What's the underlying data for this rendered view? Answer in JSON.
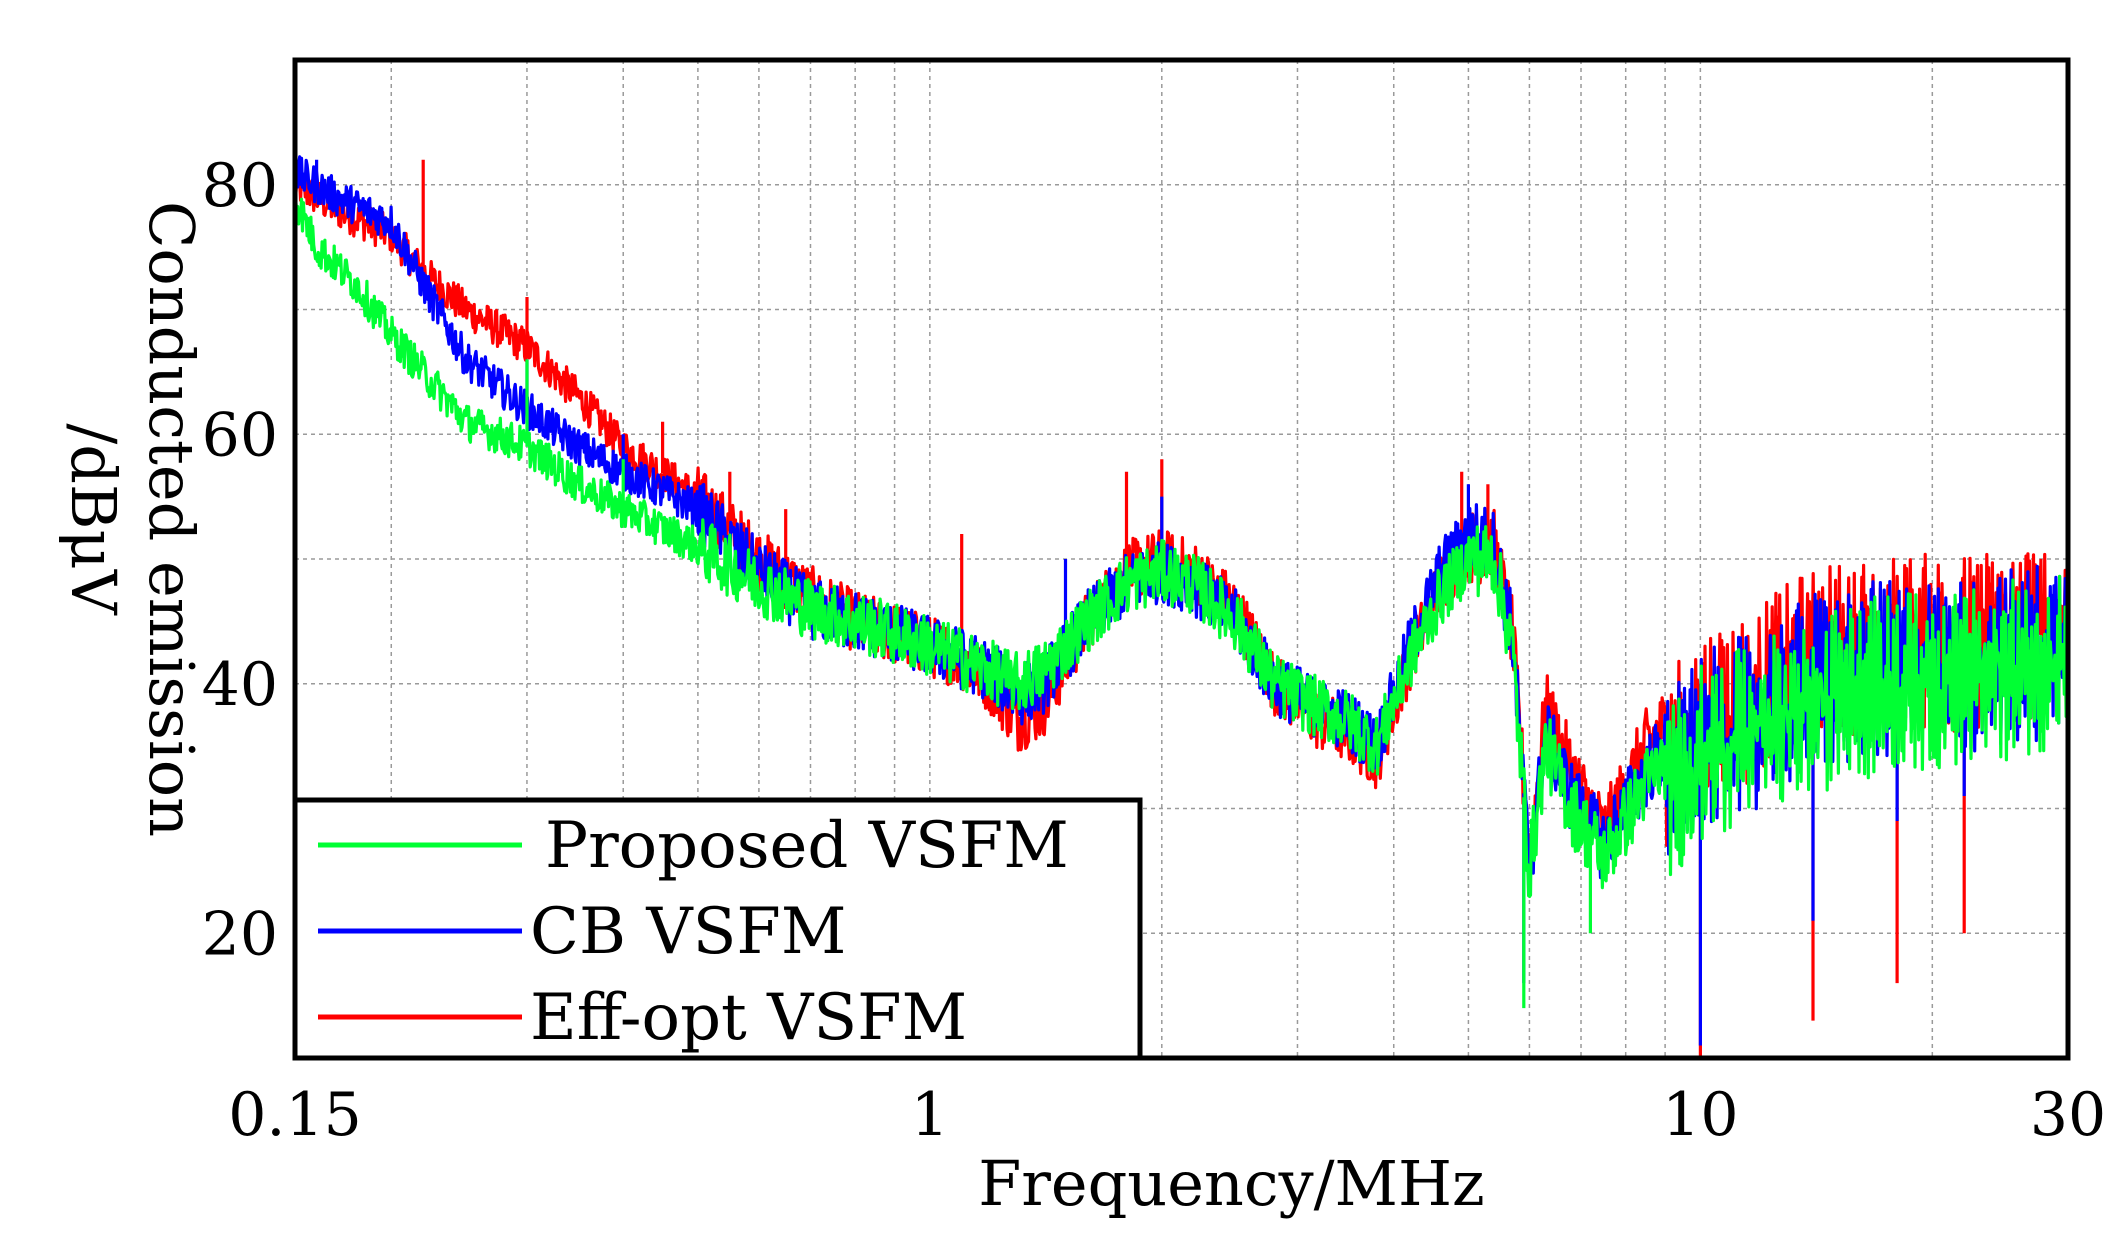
{
  "chart_data": {
    "type": "line",
    "xlabel": "Frequency/MHz",
    "ylabel_lines": [
      "Conducted emission",
      "/dBμV"
    ],
    "x_scale": "log",
    "xlim": [
      0.15,
      30
    ],
    "ylim": [
      10,
      90
    ],
    "x_ticks": [
      {
        "value": 0.15,
        "label": "0.15"
      },
      {
        "value": 1,
        "label": "1"
      },
      {
        "value": 10,
        "label": "10"
      },
      {
        "value": 30,
        "label": "30"
      }
    ],
    "y_ticks": [
      {
        "value": 20,
        "label": "20"
      },
      {
        "value": 40,
        "label": "40"
      },
      {
        "value": 60,
        "label": "60"
      },
      {
        "value": 80,
        "label": "80"
      }
    ],
    "grid": true,
    "legend_position": "bottom-left",
    "series": [
      {
        "name": "Eff-opt VSFM",
        "color": "#ff0000",
        "points": [
          [
            0.15,
            80
          ],
          [
            0.17,
            78
          ],
          [
            0.2,
            76
          ],
          [
            0.22,
            73
          ],
          [
            0.25,
            70
          ],
          [
            0.3,
            67
          ],
          [
            0.35,
            63
          ],
          [
            0.4,
            59
          ],
          [
            0.5,
            55
          ],
          [
            0.6,
            50
          ],
          [
            0.7,
            47
          ],
          [
            0.8,
            45
          ],
          [
            0.9,
            44
          ],
          [
            1,
            43
          ],
          [
            1.1,
            42
          ],
          [
            1.2,
            40
          ],
          [
            1.3,
            37
          ],
          [
            1.4,
            38
          ],
          [
            1.6,
            45
          ],
          [
            1.8,
            49
          ],
          [
            2,
            50
          ],
          [
            2.2,
            49
          ],
          [
            2.5,
            46
          ],
          [
            2.8,
            40
          ],
          [
            3.2,
            37
          ],
          [
            3.5,
            36
          ],
          [
            3.8,
            34
          ],
          [
            4.2,
            42
          ],
          [
            4.6,
            48
          ],
          [
            5,
            51
          ],
          [
            5.4,
            51
          ],
          [
            5.7,
            44
          ],
          [
            6,
            26
          ],
          [
            6.3,
            38
          ],
          [
            6.8,
            33
          ],
          [
            7.5,
            28
          ],
          [
            8.5,
            35
          ],
          [
            10,
            40
          ],
          [
            12,
            42
          ],
          [
            14,
            45
          ],
          [
            18,
            46
          ],
          [
            22,
            46
          ],
          [
            26,
            47
          ],
          [
            30,
            47
          ]
        ],
        "spikes": [
          [
            0.22,
            82
          ],
          [
            0.3,
            71
          ],
          [
            0.45,
            61
          ],
          [
            0.55,
            57
          ],
          [
            0.65,
            54
          ],
          [
            1.1,
            52
          ],
          [
            1.8,
            57
          ],
          [
            2,
            58
          ],
          [
            4.9,
            57
          ],
          [
            5.3,
            56
          ],
          [
            10,
            10
          ],
          [
            14,
            13
          ],
          [
            18,
            16
          ],
          [
            22,
            20
          ]
        ]
      },
      {
        "name": "CB VSFM",
        "color": "#0000ff",
        "points": [
          [
            0.15,
            81
          ],
          [
            0.17,
            79
          ],
          [
            0.2,
            77
          ],
          [
            0.22,
            72
          ],
          [
            0.25,
            66
          ],
          [
            0.3,
            62
          ],
          [
            0.35,
            59
          ],
          [
            0.4,
            57
          ],
          [
            0.5,
            54
          ],
          [
            0.6,
            49
          ],
          [
            0.7,
            46
          ],
          [
            0.8,
            45
          ],
          [
            0.9,
            44
          ],
          [
            1,
            43
          ],
          [
            1.1,
            42
          ],
          [
            1.2,
            41
          ],
          [
            1.3,
            39
          ],
          [
            1.4,
            40
          ],
          [
            1.6,
            45
          ],
          [
            1.8,
            48
          ],
          [
            2,
            49
          ],
          [
            2.2,
            48
          ],
          [
            2.5,
            45
          ],
          [
            2.8,
            40
          ],
          [
            3.2,
            38
          ],
          [
            3.5,
            37
          ],
          [
            3.8,
            35
          ],
          [
            4.2,
            43
          ],
          [
            4.6,
            49
          ],
          [
            5,
            52
          ],
          [
            5.4,
            51
          ],
          [
            5.7,
            44
          ],
          [
            6,
            25
          ],
          [
            6.3,
            36
          ],
          [
            6.8,
            31
          ],
          [
            7.5,
            27
          ],
          [
            8.5,
            33
          ],
          [
            10,
            38
          ],
          [
            12,
            40
          ],
          [
            14,
            43
          ],
          [
            18,
            44
          ],
          [
            22,
            44
          ],
          [
            26,
            45
          ],
          [
            30,
            46
          ]
        ],
        "spikes": [
          [
            0.16,
            82
          ],
          [
            0.3,
            66
          ],
          [
            0.4,
            60
          ],
          [
            1.5,
            50
          ],
          [
            2,
            55
          ],
          [
            5,
            56
          ],
          [
            5.9,
            16
          ],
          [
            10,
            11
          ],
          [
            14,
            21
          ],
          [
            18,
            29
          ],
          [
            22,
            31
          ],
          [
            30,
            53
          ]
        ]
      },
      {
        "name": "Proposed VSFM",
        "color": "#00ff33",
        "points": [
          [
            0.15,
            79
          ],
          [
            0.16,
            75
          ],
          [
            0.18,
            72
          ],
          [
            0.2,
            68
          ],
          [
            0.22,
            65
          ],
          [
            0.25,
            61
          ],
          [
            0.3,
            59
          ],
          [
            0.35,
            56
          ],
          [
            0.4,
            54
          ],
          [
            0.5,
            51
          ],
          [
            0.6,
            48
          ],
          [
            0.7,
            46
          ],
          [
            0.8,
            45
          ],
          [
            0.9,
            44
          ],
          [
            1,
            43
          ],
          [
            1.1,
            42
          ],
          [
            1.2,
            41
          ],
          [
            1.3,
            40
          ],
          [
            1.4,
            41
          ],
          [
            1.6,
            45
          ],
          [
            1.8,
            48
          ],
          [
            2,
            49
          ],
          [
            2.2,
            48
          ],
          [
            2.5,
            45
          ],
          [
            2.8,
            40
          ],
          [
            3.2,
            38
          ],
          [
            3.5,
            37
          ],
          [
            3.8,
            35
          ],
          [
            4.2,
            42
          ],
          [
            4.6,
            47
          ],
          [
            5,
            50
          ],
          [
            5.4,
            50
          ],
          [
            5.7,
            43
          ],
          [
            6,
            25
          ],
          [
            6.3,
            35
          ],
          [
            6.8,
            30
          ],
          [
            7.5,
            26
          ],
          [
            8.5,
            32
          ],
          [
            10,
            37
          ],
          [
            12,
            39
          ],
          [
            14,
            41
          ],
          [
            18,
            43
          ],
          [
            22,
            43
          ],
          [
            26,
            44
          ],
          [
            30,
            45
          ]
        ],
        "spikes": [
          [
            0.3,
            66
          ],
          [
            0.4,
            58
          ],
          [
            5.9,
            14
          ],
          [
            7.2,
            20
          ],
          [
            10,
            38
          ],
          [
            14,
            38
          ],
          [
            18,
            38
          ],
          [
            22,
            38
          ]
        ]
      }
    ]
  }
}
